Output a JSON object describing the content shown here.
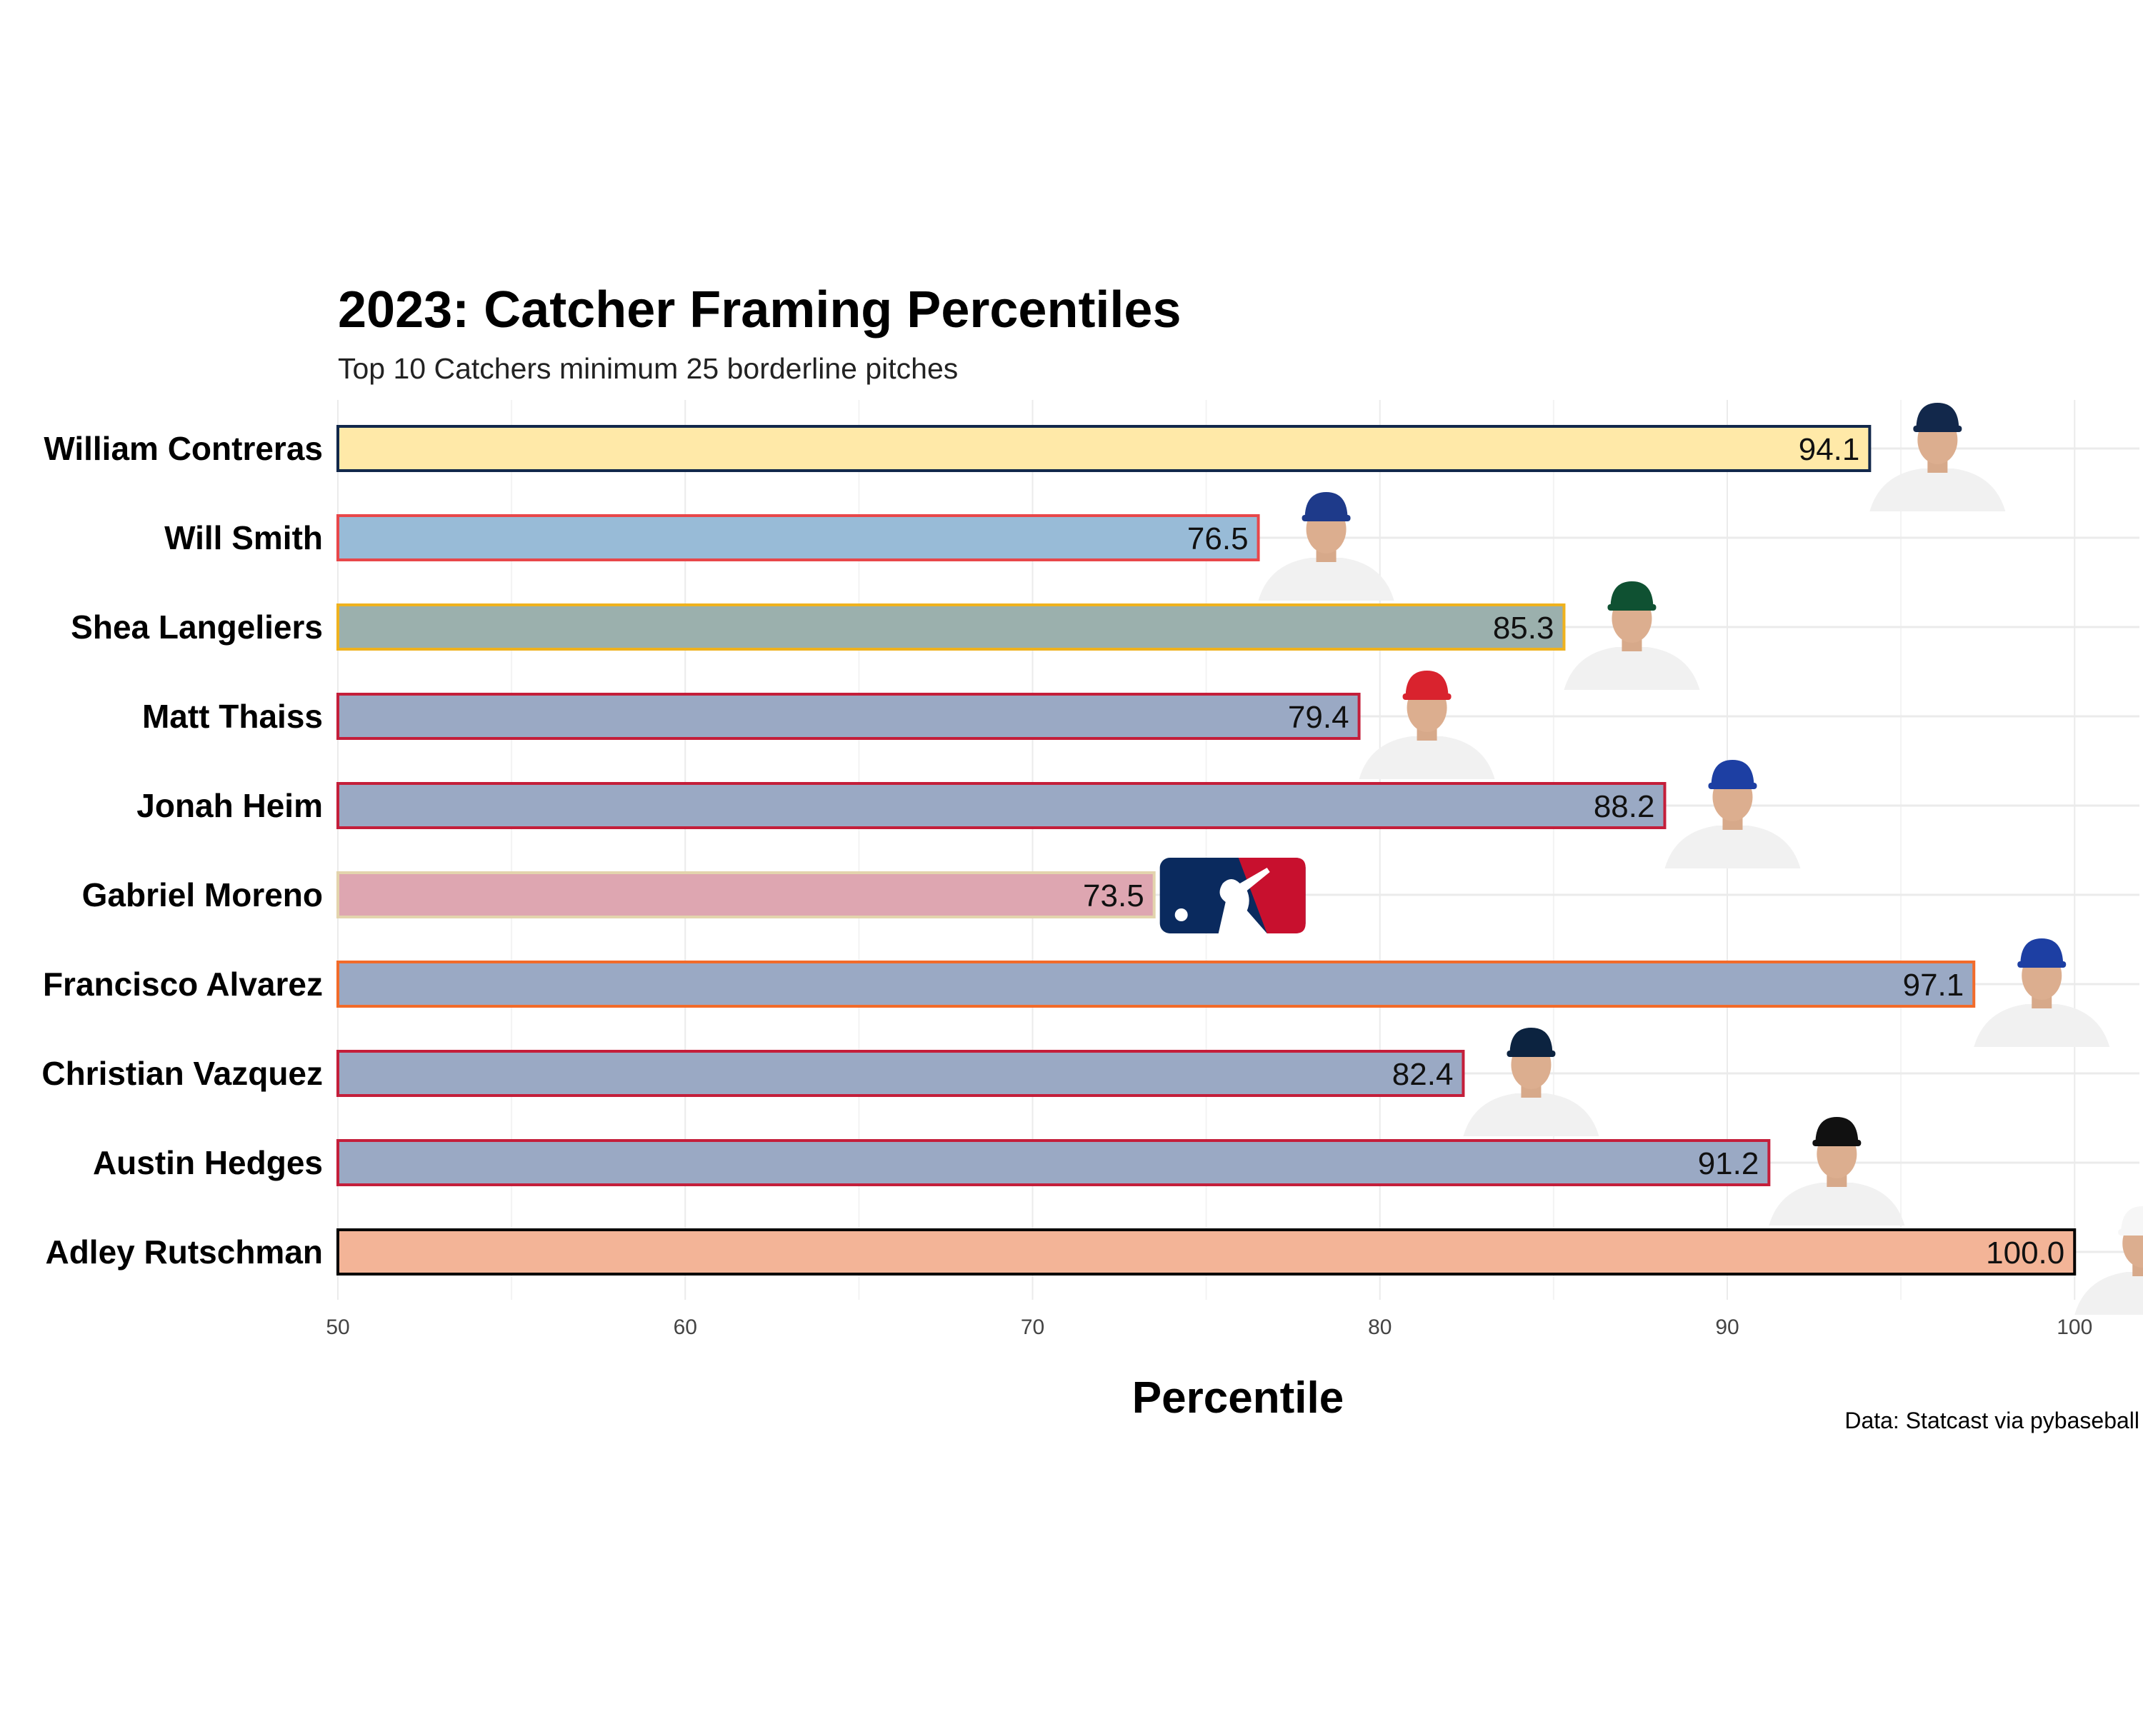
{
  "chart_data": {
    "type": "bar",
    "orientation": "horizontal",
    "title": "2023: Catcher Framing Percentiles",
    "subtitle": "Top 10 Catchers minimum 25 borderline pitches",
    "xlabel": "Percentile",
    "caption": "Data: Statcast via pybaseball",
    "xlim": [
      50,
      104
    ],
    "xticks": [
      50,
      60,
      70,
      80,
      90,
      100
    ],
    "grid": true,
    "bars": [
      {
        "name": "William Contreras",
        "value": 94.1,
        "label": "94.1",
        "fill": "#ffe9a8",
        "stroke": "#12284b",
        "icon": "brewers-player-headshot-icon",
        "cap": "#12284b"
      },
      {
        "name": "Will Smith",
        "value": 76.5,
        "label": "76.5",
        "fill": "#98bbd7",
        "stroke": "#e8474a",
        "icon": "dodgers-player-headshot-icon",
        "cap": "#1e3a8a"
      },
      {
        "name": "Shea Langeliers",
        "value": 85.3,
        "label": "85.3",
        "fill": "#9bb0ad",
        "stroke": "#efb21e",
        "icon": "athletics-player-headshot-icon",
        "cap": "#0f5132"
      },
      {
        "name": "Matt Thaiss",
        "value": 79.4,
        "label": "79.4",
        "fill": "#9aa9c4",
        "stroke": "#c41e3a",
        "icon": "angels-player-headshot-icon",
        "cap": "#d9232e"
      },
      {
        "name": "Jonah Heim",
        "value": 88.2,
        "label": "88.2",
        "fill": "#9aa9c4",
        "stroke": "#c41e3a",
        "icon": "rangers-player-headshot-icon",
        "cap": "#1d3fa3"
      },
      {
        "name": "Gabriel Moreno",
        "value": 73.5,
        "label": "73.5",
        "fill": "#dea6b1",
        "stroke": "#e3d4ad",
        "icon": "mlb-logo-icon",
        "cap": "#0a2a5e"
      },
      {
        "name": "Francisco Alvarez",
        "value": 97.1,
        "label": "97.1",
        "fill": "#9aa9c4",
        "stroke": "#f26b2a",
        "icon": "mets-player-headshot-icon",
        "cap": "#1d3fa3"
      },
      {
        "name": "Christian Vazquez",
        "value": 82.4,
        "label": "82.4",
        "fill": "#9aa9c4",
        "stroke": "#c41e3a",
        "icon": "twins-player-headshot-icon",
        "cap": "#0c2340"
      },
      {
        "name": "Austin Hedges",
        "value": 91.2,
        "label": "91.2",
        "fill": "#9aa9c4",
        "stroke": "#c41e3a",
        "icon": "pirates-player-headshot-icon",
        "cap": "#111111"
      },
      {
        "name": "Adley Rutschman",
        "value": 100.0,
        "label": "100.0",
        "fill": "#f3b497",
        "stroke": "#000000",
        "icon": "orioles-player-headshot-icon",
        "cap": "#f6f6f6"
      }
    ]
  }
}
